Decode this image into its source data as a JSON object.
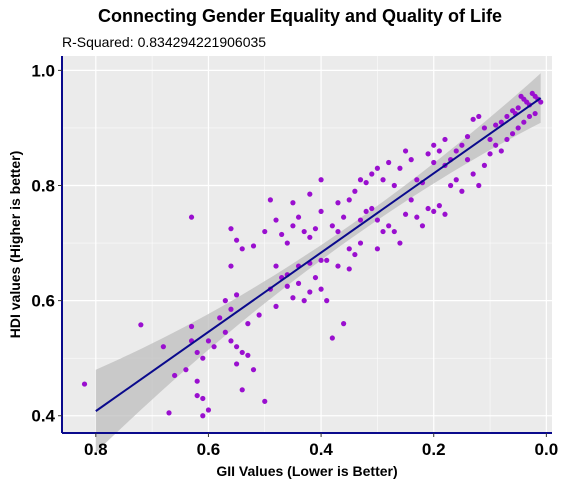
{
  "chart_data": {
    "type": "scatter",
    "title": "Connecting Gender Equality and Quality of Life",
    "subtitle_label": "R-Squared:",
    "subtitle_value": "0.834294221906035",
    "xlabel": "GII Values (Lower is Better)",
    "ylabel": "HDI values (Higher is better)",
    "x_reversed": true,
    "xlim": [
      0.86,
      -0.01
    ],
    "ylim": [
      0.37,
      1.025
    ],
    "xticks": [
      0.8,
      0.6,
      0.4,
      0.2,
      0.0
    ],
    "xtick_labels": [
      "0.8",
      "0.6",
      "0.4",
      "0.2",
      "0.0"
    ],
    "yticks": [
      0.4,
      0.6,
      0.8,
      1.0
    ],
    "ytick_labels": [
      "0.4",
      "0.6",
      "0.8",
      "1.0"
    ],
    "grid": true,
    "point_color": "#9a0fcf",
    "line_color": "#0a0a8c",
    "band_color": "#bdbdbd",
    "panel_color": "#ebebeb",
    "axis_color": "#0a0a8c",
    "fit": {
      "x": [
        0.8,
        0.01
      ],
      "y": [
        0.408,
        0.952
      ]
    },
    "points": [
      [
        0.82,
        0.455
      ],
      [
        0.72,
        0.558
      ],
      [
        0.67,
        0.405
      ],
      [
        0.61,
        0.4
      ],
      [
        0.62,
        0.435
      ],
      [
        0.64,
        0.48
      ],
      [
        0.66,
        0.47
      ],
      [
        0.68,
        0.52
      ],
      [
        0.61,
        0.43
      ],
      [
        0.6,
        0.41
      ],
      [
        0.62,
        0.46
      ],
      [
        0.63,
        0.53
      ],
      [
        0.62,
        0.51
      ],
      [
        0.61,
        0.5
      ],
      [
        0.59,
        0.52
      ],
      [
        0.63,
        0.555
      ],
      [
        0.58,
        0.57
      ],
      [
        0.57,
        0.545
      ],
      [
        0.55,
        0.52
      ],
      [
        0.54,
        0.51
      ],
      [
        0.55,
        0.49
      ],
      [
        0.53,
        0.505
      ],
      [
        0.52,
        0.48
      ],
      [
        0.54,
        0.445
      ],
      [
        0.5,
        0.425
      ],
      [
        0.6,
        0.53
      ],
      [
        0.56,
        0.53
      ],
      [
        0.53,
        0.56
      ],
      [
        0.56,
        0.585
      ],
      [
        0.57,
        0.6
      ],
      [
        0.55,
        0.61
      ],
      [
        0.51,
        0.575
      ],
      [
        0.48,
        0.59
      ],
      [
        0.46,
        0.625
      ],
      [
        0.44,
        0.63
      ],
      [
        0.47,
        0.64
      ],
      [
        0.49,
        0.62
      ],
      [
        0.45,
        0.605
      ],
      [
        0.43,
        0.6
      ],
      [
        0.42,
        0.615
      ],
      [
        0.4,
        0.62
      ],
      [
        0.39,
        0.6
      ],
      [
        0.38,
        0.535
      ],
      [
        0.36,
        0.56
      ],
      [
        0.41,
        0.64
      ],
      [
        0.48,
        0.66
      ],
      [
        0.46,
        0.645
      ],
      [
        0.44,
        0.66
      ],
      [
        0.42,
        0.665
      ],
      [
        0.4,
        0.67
      ],
      [
        0.56,
        0.66
      ],
      [
        0.55,
        0.705
      ],
      [
        0.54,
        0.69
      ],
      [
        0.52,
        0.695
      ],
      [
        0.5,
        0.72
      ],
      [
        0.48,
        0.74
      ],
      [
        0.47,
        0.715
      ],
      [
        0.45,
        0.73
      ],
      [
        0.44,
        0.745
      ],
      [
        0.46,
        0.7
      ],
      [
        0.43,
        0.72
      ],
      [
        0.42,
        0.71
      ],
      [
        0.41,
        0.725
      ],
      [
        0.4,
        0.755
      ],
      [
        0.38,
        0.73
      ],
      [
        0.37,
        0.72
      ],
      [
        0.36,
        0.745
      ],
      [
        0.35,
        0.69
      ],
      [
        0.34,
        0.68
      ],
      [
        0.33,
        0.74
      ],
      [
        0.32,
        0.755
      ],
      [
        0.31,
        0.76
      ],
      [
        0.3,
        0.74
      ],
      [
        0.29,
        0.72
      ],
      [
        0.28,
        0.73
      ],
      [
        0.27,
        0.72
      ],
      [
        0.26,
        0.7
      ],
      [
        0.25,
        0.75
      ],
      [
        0.24,
        0.775
      ],
      [
        0.23,
        0.745
      ],
      [
        0.22,
        0.73
      ],
      [
        0.21,
        0.76
      ],
      [
        0.2,
        0.755
      ],
      [
        0.19,
        0.765
      ],
      [
        0.18,
        0.75
      ],
      [
        0.3,
        0.69
      ],
      [
        0.33,
        0.7
      ],
      [
        0.35,
        0.655
      ],
      [
        0.37,
        0.66
      ],
      [
        0.39,
        0.67
      ],
      [
        0.63,
        0.745
      ],
      [
        0.56,
        0.725
      ],
      [
        0.49,
        0.775
      ],
      [
        0.45,
        0.77
      ],
      [
        0.42,
        0.785
      ],
      [
        0.4,
        0.81
      ],
      [
        0.37,
        0.77
      ],
      [
        0.35,
        0.775
      ],
      [
        0.34,
        0.79
      ],
      [
        0.33,
        0.81
      ],
      [
        0.32,
        0.805
      ],
      [
        0.31,
        0.82
      ],
      [
        0.3,
        0.83
      ],
      [
        0.29,
        0.81
      ],
      [
        0.28,
        0.84
      ],
      [
        0.27,
        0.8
      ],
      [
        0.26,
        0.83
      ],
      [
        0.25,
        0.86
      ],
      [
        0.24,
        0.845
      ],
      [
        0.23,
        0.81
      ],
      [
        0.22,
        0.805
      ],
      [
        0.21,
        0.855
      ],
      [
        0.2,
        0.84
      ],
      [
        0.19,
        0.86
      ],
      [
        0.18,
        0.835
      ],
      [
        0.17,
        0.8
      ],
      [
        0.16,
        0.81
      ],
      [
        0.15,
        0.79
      ],
      [
        0.14,
        0.845
      ],
      [
        0.13,
        0.82
      ],
      [
        0.12,
        0.8
      ],
      [
        0.11,
        0.835
      ],
      [
        0.1,
        0.855
      ],
      [
        0.09,
        0.87
      ],
      [
        0.08,
        0.86
      ],
      [
        0.07,
        0.88
      ],
      [
        0.06,
        0.89
      ],
      [
        0.05,
        0.9
      ],
      [
        0.04,
        0.91
      ],
      [
        0.03,
        0.92
      ],
      [
        0.02,
        0.925
      ],
      [
        0.01,
        0.945
      ],
      [
        0.02,
        0.955
      ],
      [
        0.03,
        0.94
      ],
      [
        0.04,
        0.95
      ],
      [
        0.05,
        0.935
      ],
      [
        0.06,
        0.93
      ],
      [
        0.07,
        0.92
      ],
      [
        0.08,
        0.91
      ],
      [
        0.09,
        0.905
      ],
      [
        0.1,
        0.88
      ],
      [
        0.11,
        0.9
      ],
      [
        0.12,
        0.92
      ],
      [
        0.13,
        0.915
      ],
      [
        0.14,
        0.885
      ],
      [
        0.15,
        0.87
      ],
      [
        0.16,
        0.86
      ],
      [
        0.18,
        0.88
      ],
      [
        0.2,
        0.87
      ],
      [
        0.17,
        0.845
      ],
      [
        0.015,
        0.95
      ],
      [
        0.025,
        0.96
      ],
      [
        0.035,
        0.945
      ],
      [
        0.045,
        0.955
      ],
      [
        0.055,
        0.925
      ]
    ]
  }
}
